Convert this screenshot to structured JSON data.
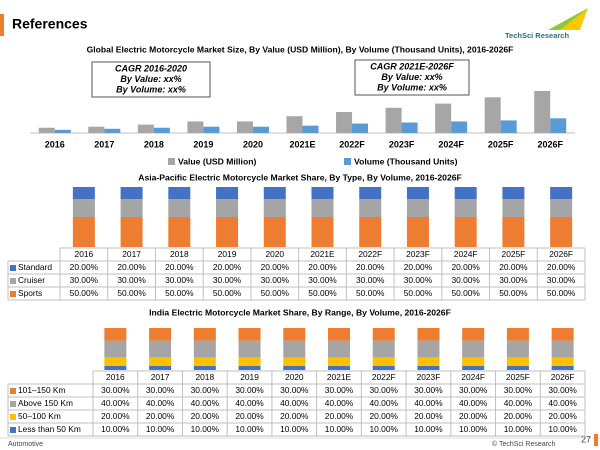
{
  "header": {
    "title": "References",
    "logo": "TechSci Research"
  },
  "footer": {
    "left": "Automotive",
    "right": "© TechSci Research",
    "page": "27"
  },
  "chart_data": [
    {
      "type": "bar",
      "title": "Global Electric Motorcycle Market Size, By Value (USD Million), By Volume (Thousand Units), 2016-2026F",
      "categories": [
        "2016",
        "2017",
        "2018",
        "2019",
        "2020",
        "2021E",
        "2022F",
        "2023F",
        "2024F",
        "2025F",
        "2026F"
      ],
      "series": [
        {
          "name": "Value (USD Million)",
          "color": "#a6a6a6",
          "values": [
            5,
            6,
            8,
            11,
            11,
            16,
            20,
            24,
            28,
            34,
            40
          ]
        },
        {
          "name": "Volume (Thousand Units)",
          "color": "#5b9bd5",
          "values": [
            3,
            4,
            5,
            6,
            6,
            7,
            9,
            10,
            11,
            12,
            14
          ]
        }
      ],
      "annotations": [
        [
          "CAGR 2016-2020",
          "By Value: xx%",
          "By Volume: xx%"
        ],
        [
          "CAGR 2021E-2026F",
          "By Value: xx%",
          "By Volume: xx%"
        ]
      ]
    },
    {
      "type": "stacked-bar-table",
      "title": "Asia-Pacific Electric Motorcycle Market Share, By Type, By Volume, 2016-2026F",
      "categories": [
        "2016",
        "2017",
        "2018",
        "2019",
        "2020",
        "2021E",
        "2022F",
        "2023F",
        "2024F",
        "2025F",
        "2026F"
      ],
      "series": [
        {
          "name": "Standard",
          "color": "#4472c4",
          "values": [
            20,
            20,
            20,
            20,
            20,
            20,
            20,
            20,
            20,
            20,
            20
          ],
          "value_labels": [
            "20.00%",
            "20.00%",
            "20.00%",
            "20.00%",
            "20.00%",
            "20.00%",
            "20.00%",
            "20.00%",
            "20.00%",
            "20.00%",
            "20.00%"
          ]
        },
        {
          "name": "Cruiser",
          "color": "#a5a5a5",
          "values": [
            30,
            30,
            30,
            30,
            30,
            30,
            30,
            30,
            30,
            30,
            30
          ],
          "value_labels": [
            "30.00%",
            "30.00%",
            "30.00%",
            "30.00%",
            "30.00%",
            "30.00%",
            "30.00%",
            "30.00%",
            "30.00%",
            "30.00%",
            "30.00%"
          ]
        },
        {
          "name": "Sports",
          "color": "#ed7d31",
          "values": [
            50,
            50,
            50,
            50,
            50,
            50,
            50,
            50,
            50,
            50,
            50
          ],
          "value_labels": [
            "50.00%",
            "50.00%",
            "50.00%",
            "50.00%",
            "50.00%",
            "50.00%",
            "50.00%",
            "50.00%",
            "50.00%",
            "50.00%",
            "50.00%"
          ]
        }
      ]
    },
    {
      "type": "stacked-bar-table",
      "title": "India Electric Motorcycle Market Share, By Range, By Volume, 2016-2026F",
      "categories": [
        "2016",
        "2017",
        "2018",
        "2019",
        "2020",
        "2021E",
        "2022F",
        "2023F",
        "2024F",
        "2025F",
        "2026F"
      ],
      "series": [
        {
          "name": "101–150 Km",
          "color": "#ed7d31",
          "values": [
            30,
            30,
            30,
            30,
            30,
            30,
            30,
            30,
            30,
            30,
            30
          ],
          "value_labels": [
            "30.00%",
            "30.00%",
            "30.00%",
            "30.00%",
            "30.00%",
            "30.00%",
            "30.00%",
            "30.00%",
            "30.00%",
            "30.00%",
            "30.00%"
          ]
        },
        {
          "name": "Above 150 Km",
          "color": "#a5a5a5",
          "values": [
            40,
            40,
            40,
            40,
            40,
            40,
            40,
            40,
            40,
            40,
            40
          ],
          "value_labels": [
            "40.00%",
            "40.00%",
            "40.00%",
            "40.00%",
            "40.00%",
            "40.00%",
            "40.00%",
            "40.00%",
            "40.00%",
            "40.00%",
            "40.00%"
          ]
        },
        {
          "name": "50–100 Km",
          "color": "#ffc000",
          "values": [
            20,
            20,
            20,
            20,
            20,
            20,
            20,
            20,
            20,
            20,
            20
          ],
          "value_labels": [
            "20.00%",
            "20.00%",
            "20.00%",
            "20.00%",
            "20.00%",
            "20.00%",
            "20.00%",
            "20.00%",
            "20.00%",
            "20.00%",
            "20.00%"
          ]
        },
        {
          "name": "Less than 50 Km",
          "color": "#4472c4",
          "values": [
            10,
            10,
            10,
            10,
            10,
            10,
            10,
            10,
            10,
            10,
            10
          ],
          "value_labels": [
            "10.00%",
            "10.00%",
            "10.00%",
            "10.00%",
            "10.00%",
            "10.00%",
            "10.00%",
            "10.00%",
            "10.00%",
            "10.00%",
            "10.00%"
          ]
        }
      ]
    }
  ]
}
